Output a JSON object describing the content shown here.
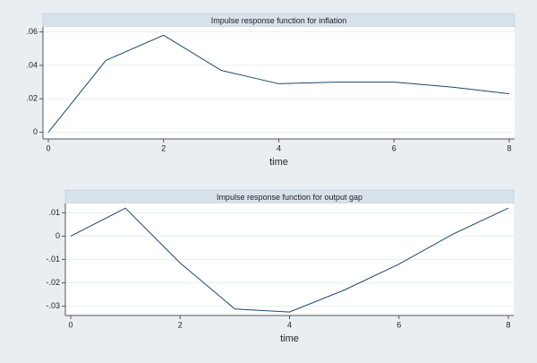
{
  "chart_data": [
    {
      "type": "line",
      "title": "Impulse response function for inflation",
      "xlabel": "time",
      "x": [
        0,
        1,
        2,
        3,
        4,
        5,
        6,
        7,
        8
      ],
      "values": [
        0,
        0.043,
        0.058,
        0.037,
        0.029,
        0.03,
        0.03,
        0.027,
        0.023
      ],
      "color": "#1a476f",
      "grid": true,
      "xlim": [
        0,
        8
      ],
      "xticks": [
        0,
        2,
        4,
        6,
        8
      ],
      "ylim": [
        -0.004,
        0.063
      ],
      "yticks": [
        0,
        {
          "value": 0.02,
          "label": ".02"
        },
        {
          "value": 0.04,
          "label": ".04"
        },
        {
          "value": 0.06,
          "label": ".06"
        }
      ]
    },
    {
      "type": "line",
      "title": "Impulse response function for output gap",
      "xlabel": "time",
      "x": [
        0,
        1,
        2,
        3,
        4,
        5,
        6,
        7,
        8
      ],
      "values": [
        0,
        0.012,
        -0.0115,
        -0.0312,
        -0.0325,
        -0.0231,
        -0.012,
        0.001,
        0.012
      ],
      "color": "#1a476f",
      "grid": true,
      "xlim": [
        0,
        8
      ],
      "xticks": [
        0,
        2,
        4,
        6,
        8
      ],
      "ylim": [
        -0.034,
        0.014
      ],
      "yticks": [
        {
          "value": -0.03,
          "label": "-.03"
        },
        {
          "value": -0.02,
          "label": "-.02"
        },
        {
          "value": -0.01,
          "label": "-.01"
        },
        0,
        {
          "value": 0.01,
          "label": ".01"
        }
      ]
    }
  ]
}
